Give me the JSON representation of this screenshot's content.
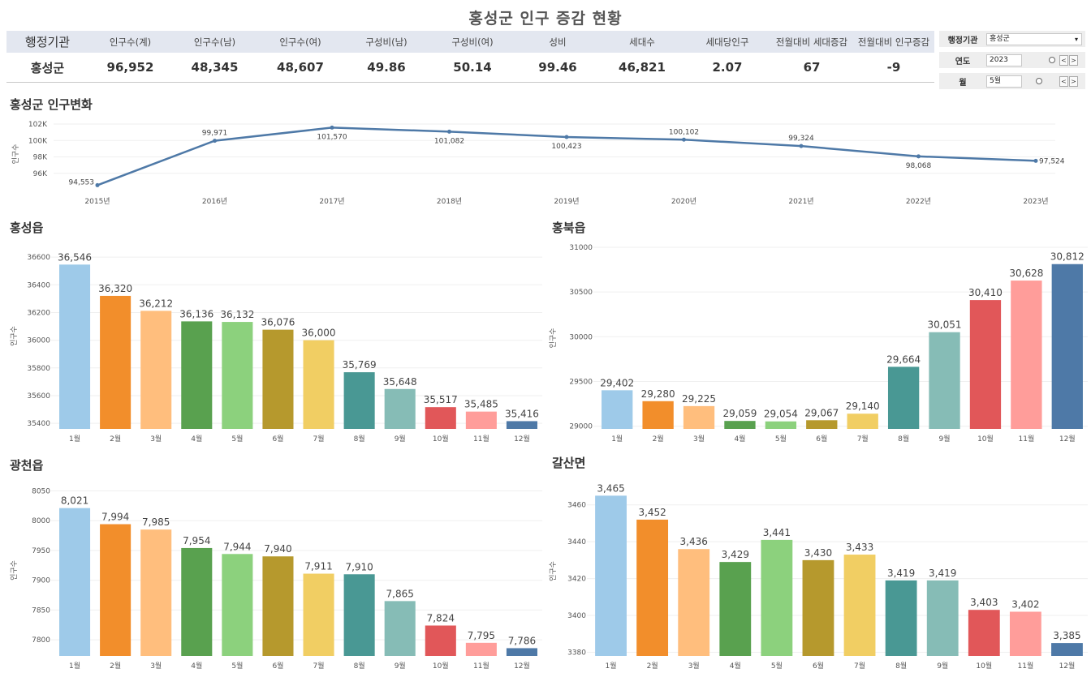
{
  "page_title": "홍성군 인구 증감 현황",
  "summary": {
    "headers": [
      "행정기관",
      "인구수(계)",
      "인구수(남)",
      "인구수(여)",
      "구성비(남)",
      "구성비(여)",
      "성비",
      "세대수",
      "세대당인구",
      "전월대비 세대증감",
      "전월대비 인구증감"
    ],
    "row": [
      "홍성군",
      "96,952",
      "48,345",
      "48,607",
      "49.86",
      "50.14",
      "99.46",
      "46,821",
      "2.07",
      "67",
      "-9"
    ]
  },
  "filters": {
    "agency_label": "행정기관",
    "agency_value": "홍성군",
    "year_label": "연도",
    "year_value": "2023",
    "month_label": "월",
    "month_value": "5월",
    "prev_symbol": "<",
    "next_symbol": ">",
    "dropdown_symbol": "▾"
  },
  "colors": [
    "#9ecae9",
    "#f28e2b",
    "#ffbe7d",
    "#59a14f",
    "#8cd17d",
    "#b6992d",
    "#f1ce63",
    "#499894",
    "#86bcb6",
    "#e15759",
    "#ff9d9a",
    "#4e79a7"
  ],
  "line_color": "#4e79a7",
  "chart_data": [
    {
      "id": "trend",
      "type": "line",
      "title": "홍성군 인구변화",
      "ylabel": "인구수",
      "x": [
        "2015년",
        "2016년",
        "2017년",
        "2018년",
        "2019년",
        "2020년",
        "2021년",
        "2022년",
        "2023년"
      ],
      "values": [
        94553,
        99971,
        101570,
        101082,
        100423,
        100102,
        99324,
        98068,
        97524
      ],
      "value_labels": [
        "94,553",
        "99,971",
        "101,570",
        "101,082",
        "100,423",
        "100,102",
        "99,324",
        "98,068",
        "97,524"
      ],
      "yticks": [
        96000,
        98000,
        100000,
        102000
      ],
      "ytick_labels": [
        "96K",
        "98K",
        "100K",
        "102K"
      ],
      "ylim": [
        94200,
        102500
      ]
    },
    {
      "id": "hongseong",
      "type": "bar",
      "title": "홍성읍",
      "ylabel": "인구수",
      "categories": [
        "1월",
        "2월",
        "3월",
        "4월",
        "5월",
        "6월",
        "7월",
        "8월",
        "9월",
        "10월",
        "11월",
        "12월"
      ],
      "values": [
        36546,
        36320,
        36212,
        36136,
        36132,
        36076,
        36000,
        35769,
        35648,
        35517,
        35485,
        35416
      ],
      "value_labels": [
        "36,546",
        "36,320",
        "36,212",
        "36,136",
        "36,132",
        "36,076",
        "36,000",
        "35,769",
        "35,648",
        "35,517",
        "35,485",
        "35,416"
      ],
      "yticks": [
        35400,
        35600,
        35800,
        36000,
        36200,
        36400,
        36600
      ],
      "ytick_labels": [
        "35400",
        "35600",
        "35800",
        "36000",
        "36200",
        "36400",
        "36600"
      ],
      "ylim": [
        35360,
        36700
      ]
    },
    {
      "id": "hongbuk",
      "type": "bar",
      "title": "홍북읍",
      "ylabel": "인구수",
      "categories": [
        "1월",
        "2월",
        "3월",
        "4월",
        "5월",
        "6월",
        "7월",
        "8월",
        "9월",
        "10월",
        "11월",
        "12월"
      ],
      "values": [
        29402,
        29280,
        29225,
        29059,
        29054,
        29067,
        29140,
        29664,
        30051,
        30410,
        30628,
        30812
      ],
      "value_labels": [
        "29,402",
        "29,280",
        "29,225",
        "29,059",
        "29,054",
        "29,067",
        "29,140",
        "29,664",
        "30,051",
        "30,410",
        "30,628",
        "30,812"
      ],
      "yticks": [
        29000,
        29500,
        30000,
        30500,
        31000
      ],
      "ytick_labels": [
        "29000",
        "29500",
        "30000",
        "30500",
        "31000"
      ],
      "ylim": [
        28970,
        31000
      ]
    },
    {
      "id": "gwangcheon",
      "type": "bar",
      "title": "광천읍",
      "ylabel": "인구수",
      "categories": [
        "1월",
        "2월",
        "3월",
        "4월",
        "5월",
        "6월",
        "7월",
        "8월",
        "9월",
        "10월",
        "11월",
        "12월"
      ],
      "values": [
        8021,
        7994,
        7985,
        7954,
        7944,
        7940,
        7911,
        7910,
        7865,
        7824,
        7795,
        7786
      ],
      "value_labels": [
        "8,021",
        "7,994",
        "7,985",
        "7,954",
        "7,944",
        "7,940",
        "7,911",
        "7,910",
        "7,865",
        "7,824",
        "7,795",
        "7,786"
      ],
      "yticks": [
        7800,
        7850,
        7900,
        7950,
        8000,
        8050
      ],
      "ytick_labels": [
        "7800",
        "7850",
        "7900",
        "7950",
        "8000",
        "8050"
      ],
      "ylim": [
        7773,
        8060
      ]
    },
    {
      "id": "galsan",
      "type": "bar",
      "title": "갈산면",
      "ylabel": "인구수",
      "categories": [
        "1월",
        "2월",
        "3월",
        "4월",
        "5월",
        "6월",
        "7월",
        "8월",
        "9월",
        "10월",
        "11월",
        "12월"
      ],
      "values": [
        3465,
        3452,
        3436,
        3429,
        3441,
        3430,
        3433,
        3419,
        3419,
        3403,
        3402,
        3385
      ],
      "value_labels": [
        "3,465",
        "3,452",
        "3,436",
        "3,429",
        "3,441",
        "3,430",
        "3,433",
        "3,419",
        "3,419",
        "3,403",
        "3,402",
        "3,385"
      ],
      "yticks": [
        3380,
        3400,
        3420,
        3440,
        3460
      ],
      "ytick_labels": [
        "3380",
        "3400",
        "3420",
        "3440",
        "3460"
      ],
      "ylim": [
        3378,
        3470
      ]
    }
  ]
}
